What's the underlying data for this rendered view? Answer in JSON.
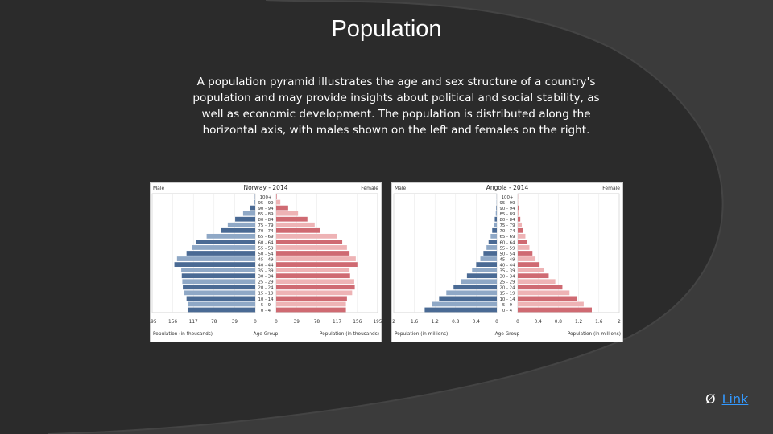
{
  "slide": {
    "title": "Population",
    "description": "A population pyramid illustrates the age and sex structure of a country's population and may provide insights about political and social stability, as well as economic development. The population is distributed along the horizontal axis, with males shown on the left and females on the right.",
    "link_bullet": "Ø",
    "link_label": "Link"
  },
  "colors": {
    "background": "#2b2b2b",
    "swoosh": "#3b3b3b",
    "male_dark": "#4a6a94",
    "male_light": "#8fa8c6",
    "female_dark": "#cf6a72",
    "female_light": "#eeb3b5"
  },
  "chart_data": [
    {
      "type": "bar",
      "orientation": "horizontal-pyramid",
      "title": "Norway - 2014",
      "left_label": "Male",
      "right_label": "Female",
      "center_label": "Age Group",
      "left_axis_label": "Population (in thousands)",
      "right_axis_label": "Population (in thousands)",
      "categories": [
        "100+",
        "95 - 99",
        "90 - 94",
        "85 - 89",
        "80 - 84",
        "75 - 79",
        "70 - 74",
        "65 - 69",
        "60 - 64",
        "55 - 59",
        "50 - 54",
        "45 - 49",
        "40 - 44",
        "35 - 39",
        "30 - 34",
        "25 - 29",
        "20 - 24",
        "15 - 19",
        "10 - 14",
        "5 - 9",
        "0 - 4"
      ],
      "left_ticks": [
        "195",
        "156",
        "117",
        "78",
        "39",
        "0"
      ],
      "right_ticks": [
        "0",
        "39",
        "78",
        "117",
        "156",
        "195"
      ],
      "xlim": [
        0,
        195
      ],
      "series": [
        {
          "name": "Male",
          "values": [
            0.5,
            3,
            10,
            23,
            38,
            52,
            65,
            92,
            112,
            120,
            130,
            148,
            153,
            140,
            139,
            138,
            137,
            134,
            130,
            128,
            128
          ]
        },
        {
          "name": "Female",
          "values": [
            1,
            8,
            23,
            42,
            60,
            74,
            84,
            117,
            127,
            136,
            141,
            153,
            156,
            141,
            142,
            150,
            151,
            146,
            136,
            134,
            134
          ]
        }
      ]
    },
    {
      "type": "bar",
      "orientation": "horizontal-pyramid",
      "title": "Angola - 2014",
      "left_label": "Male",
      "right_label": "Female",
      "center_label": "Age Group",
      "left_axis_label": "Population (in millions)",
      "right_axis_label": "Population (in millions)",
      "categories": [
        "100+",
        "95 - 99",
        "90 - 94",
        "85 - 89",
        "80 - 84",
        "75 - 79",
        "70 - 74",
        "65 - 69",
        "60 - 64",
        "55 - 59",
        "50 - 54",
        "45 - 49",
        "40 - 44",
        "35 - 39",
        "30 - 34",
        "25 - 29",
        "20 - 24",
        "15 - 19",
        "10 - 14",
        "5 - 9",
        "0 - 4"
      ],
      "left_ticks": [
        "2",
        "1.6",
        "1.2",
        "0.8",
        "0.4",
        "0"
      ],
      "right_ticks": [
        "0",
        "0.4",
        "0.8",
        "1.2",
        "1.6",
        "2"
      ],
      "xlim": [
        0,
        2
      ],
      "series": [
        {
          "name": "Male",
          "values": [
            0.002,
            0.005,
            0.01,
            0.02,
            0.04,
            0.06,
            0.09,
            0.12,
            0.16,
            0.2,
            0.26,
            0.32,
            0.4,
            0.48,
            0.58,
            0.7,
            0.84,
            0.98,
            1.12,
            1.26,
            1.4
          ]
        },
        {
          "name": "Female",
          "values": [
            0.003,
            0.007,
            0.015,
            0.03,
            0.05,
            0.08,
            0.11,
            0.15,
            0.19,
            0.23,
            0.29,
            0.35,
            0.43,
            0.51,
            0.61,
            0.74,
            0.88,
            1.02,
            1.16,
            1.3,
            1.46
          ]
        }
      ]
    }
  ]
}
